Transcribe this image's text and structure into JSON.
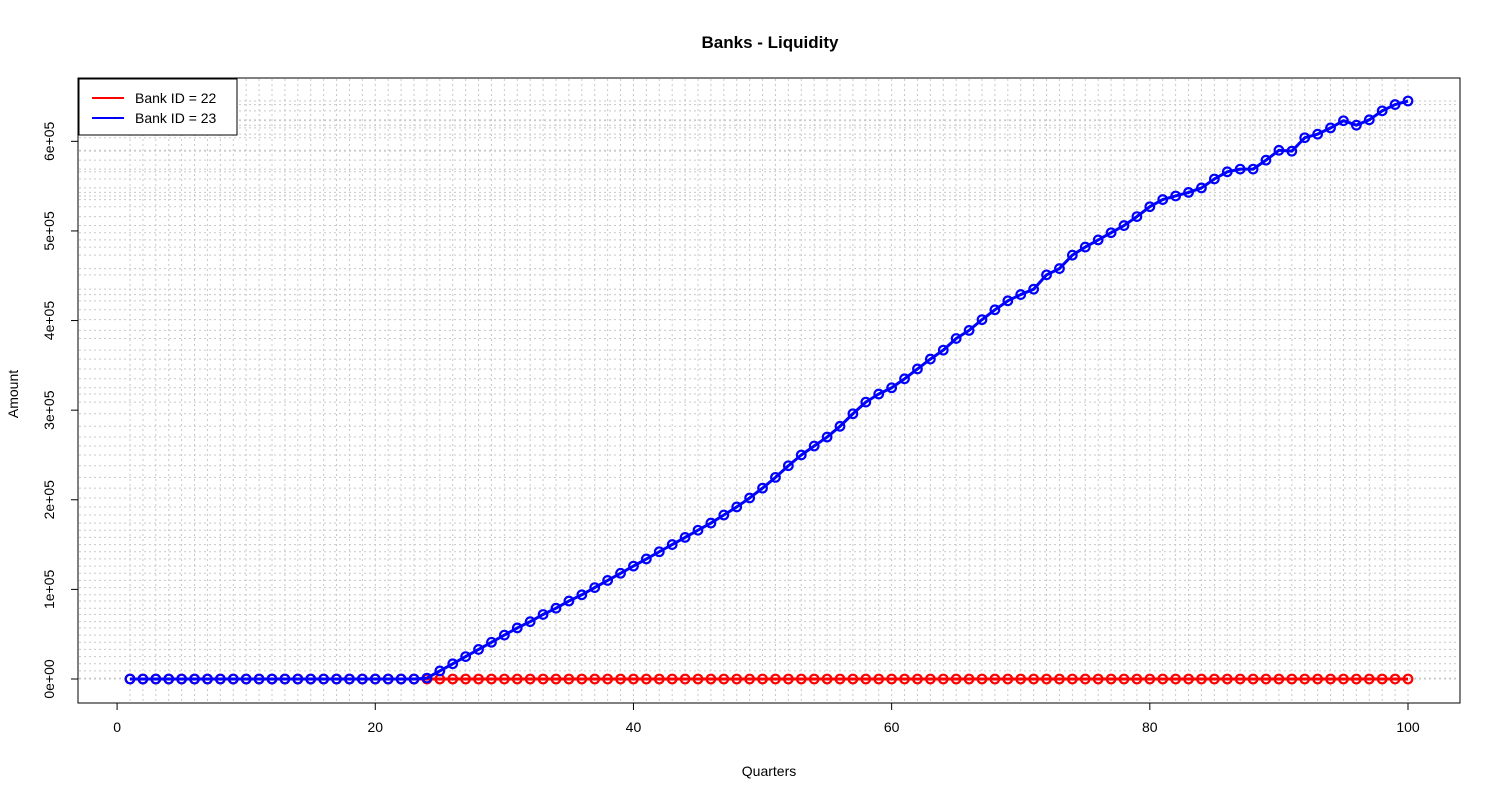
{
  "chart_data": {
    "type": "line",
    "title": "Banks - Liquidity",
    "xlabel": "Quarters",
    "ylabel": "Amount",
    "xlim": [
      1,
      100
    ],
    "ylim": [
      0,
      645000
    ],
    "x_ticks": [
      0,
      20,
      40,
      60,
      80,
      100
    ],
    "x_tick_labels": [
      "0",
      "20",
      "40",
      "60",
      "80",
      "100"
    ],
    "y_ticks": [
      0,
      100000,
      200000,
      300000,
      400000,
      500000,
      600000
    ],
    "y_tick_labels": [
      "0e+00",
      "1e+05",
      "2e+05",
      "3e+05",
      "4e+05",
      "5e+05",
      "6e+05"
    ],
    "grid": true,
    "legend_position": "top-left",
    "series": [
      {
        "name": "Bank ID = 22",
        "color": "#ff0000",
        "x": [
          1,
          2,
          3,
          4,
          5,
          6,
          7,
          8,
          9,
          10,
          11,
          12,
          13,
          14,
          15,
          16,
          17,
          18,
          19,
          20,
          21,
          22,
          23,
          24,
          25,
          26,
          27,
          28,
          29,
          30,
          31,
          32,
          33,
          34,
          35,
          36,
          37,
          38,
          39,
          40,
          41,
          42,
          43,
          44,
          45,
          46,
          47,
          48,
          49,
          50,
          51,
          52,
          53,
          54,
          55,
          56,
          57,
          58,
          59,
          60,
          61,
          62,
          63,
          64,
          65,
          66,
          67,
          68,
          69,
          70,
          71,
          72,
          73,
          74,
          75,
          76,
          77,
          78,
          79,
          80,
          81,
          82,
          83,
          84,
          85,
          86,
          87,
          88,
          89,
          90,
          91,
          92,
          93,
          94,
          95,
          96,
          97,
          98,
          99,
          100
        ],
        "values": [
          0,
          0,
          0,
          0,
          0,
          0,
          0,
          0,
          0,
          0,
          0,
          0,
          0,
          0,
          0,
          0,
          0,
          0,
          0,
          0,
          0,
          0,
          0,
          0,
          0,
          0,
          0,
          0,
          0,
          0,
          0,
          0,
          0,
          0,
          0,
          0,
          0,
          0,
          0,
          0,
          0,
          0,
          0,
          0,
          0,
          0,
          0,
          0,
          0,
          0,
          0,
          0,
          0,
          0,
          0,
          0,
          0,
          0,
          0,
          0,
          0,
          0,
          0,
          0,
          0,
          0,
          0,
          0,
          0,
          0,
          0,
          0,
          0,
          0,
          0,
          0,
          0,
          0,
          0,
          0,
          0,
          0,
          0,
          0,
          0,
          0,
          0,
          0,
          0,
          0,
          0,
          0,
          0,
          0,
          0,
          0,
          0,
          0,
          0,
          0
        ]
      },
      {
        "name": "Bank ID = 23",
        "color": "#0000ff",
        "x": [
          1,
          2,
          3,
          4,
          5,
          6,
          7,
          8,
          9,
          10,
          11,
          12,
          13,
          14,
          15,
          16,
          17,
          18,
          19,
          20,
          21,
          22,
          23,
          24,
          25,
          26,
          27,
          28,
          29,
          30,
          31,
          32,
          33,
          34,
          35,
          36,
          37,
          38,
          39,
          40,
          41,
          42,
          43,
          44,
          45,
          46,
          47,
          48,
          49,
          50,
          51,
          52,
          53,
          54,
          55,
          56,
          57,
          58,
          59,
          60,
          61,
          62,
          63,
          64,
          65,
          66,
          67,
          68,
          69,
          70,
          71,
          72,
          73,
          74,
          75,
          76,
          77,
          78,
          79,
          80,
          81,
          82,
          83,
          84,
          85,
          86,
          87,
          88,
          89,
          90,
          91,
          92,
          93,
          94,
          95,
          96,
          97,
          98,
          99,
          100
        ],
        "values": [
          0,
          0,
          0,
          0,
          0,
          0,
          0,
          0,
          0,
          0,
          0,
          0,
          0,
          0,
          0,
          0,
          0,
          0,
          0,
          0,
          0,
          0,
          0,
          1000,
          9000,
          17000,
          25000,
          33000,
          41000,
          49000,
          57000,
          64000,
          72000,
          79000,
          87000,
          94000,
          102000,
          110000,
          118000,
          126000,
          134000,
          142000,
          150000,
          158000,
          166000,
          174000,
          183000,
          192000,
          202000,
          213000,
          225000,
          238000,
          250000,
          260000,
          270000,
          282000,
          296000,
          309000,
          318000,
          325000,
          335000,
          346000,
          357000,
          367000,
          380000,
          389000,
          401000,
          412000,
          422000,
          429000,
          435000,
          451000,
          458000,
          473000,
          482000,
          490000,
          498000,
          506000,
          516000,
          527000,
          535000,
          539000,
          543000,
          548000,
          558000,
          566000,
          569000,
          569000,
          579000,
          590000,
          589000,
          604000,
          608000,
          615000,
          623000,
          618000,
          624000,
          634000,
          641000,
          645000
        ]
      }
    ]
  }
}
